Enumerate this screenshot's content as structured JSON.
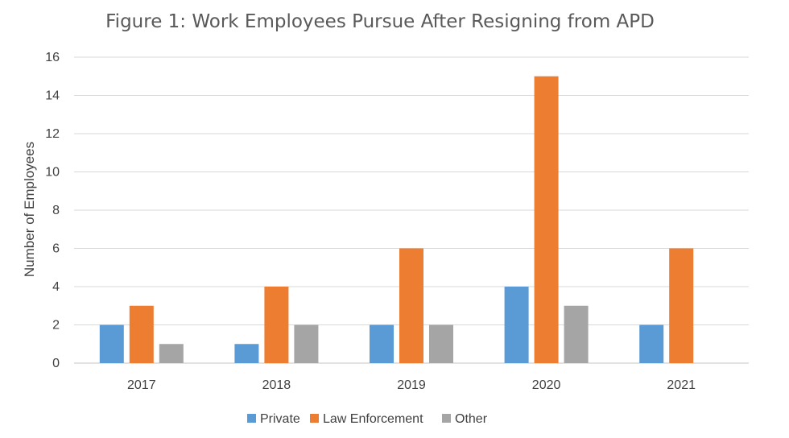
{
  "chart_data": {
    "type": "bar",
    "title": "Figure 1: Work Employees Pursue After Resigning from  APD",
    "xlabel": "",
    "ylabel": "Number of Employees",
    "ylim": [
      0,
      16
    ],
    "ytick_step": 2,
    "grid": true,
    "legend_position": "bottom",
    "categories": [
      "2017",
      "2018",
      "2019",
      "2020",
      "2021"
    ],
    "series": [
      {
        "name": "Private",
        "color": "#5b9bd5",
        "values": [
          2,
          1,
          2,
          4,
          2
        ]
      },
      {
        "name": "Law Enforcement",
        "color": "#ed7d31",
        "values": [
          3,
          4,
          6,
          15,
          6
        ]
      },
      {
        "name": "Other",
        "color": "#a5a5a5",
        "values": [
          1,
          2,
          2,
          3,
          0
        ]
      }
    ]
  }
}
